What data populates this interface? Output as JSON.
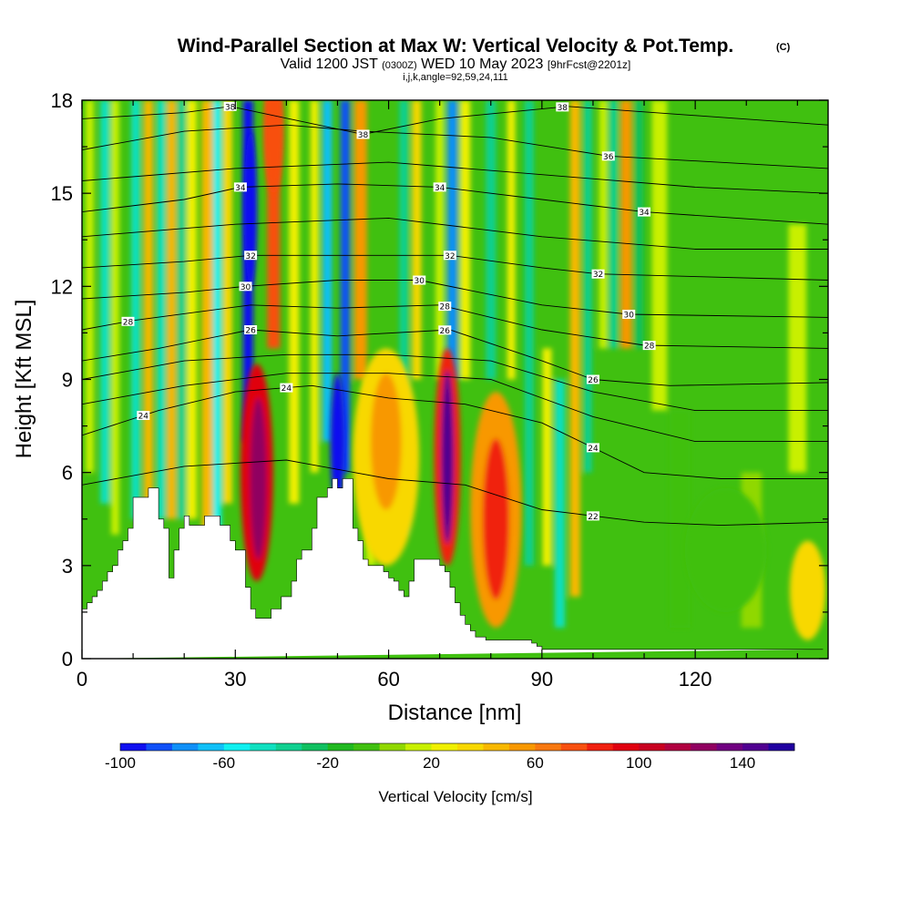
{
  "header": {
    "title": "Wind-Parallel Section at Max W: Vertical Velocity & Pot.Temp.",
    "copyright": "(C)",
    "valid_main": "Valid 1200 JST",
    "valid_z": "(0300Z)",
    "valid_date": "WED 10 May 2023",
    "forecast": "[9hrFcst@2201z]",
    "indices": "i,j,k,angle=92,59,24,111"
  },
  "chart_data": {
    "type": "heatmap",
    "title": "Wind-Parallel Section at Max W: Vertical Velocity & Pot.Temp.",
    "xlabel": "Distance [nm]",
    "ylabel": "Height [Kft MSL]",
    "xlim": [
      0,
      146
    ],
    "ylim": [
      0,
      18
    ],
    "x_ticks": [
      0,
      30,
      60,
      90,
      120
    ],
    "x_tick_labels": [
      "0",
      "30",
      "60",
      "90",
      "120"
    ],
    "y_ticks": [
      0,
      3,
      6,
      9,
      12,
      15,
      18
    ],
    "y_tick_labels": [
      "0",
      "3",
      "6",
      "9",
      "12",
      "15",
      "18"
    ],
    "grid": false,
    "background_field": -10,
    "colorbar": {
      "label": "Vertical Velocity [cm/s]",
      "min": -100,
      "max": 160,
      "step": 10,
      "tick_values": [
        -100,
        -60,
        -20,
        20,
        60,
        100,
        140
      ],
      "tick_labels": [
        "-100",
        "-60",
        "-20",
        "20",
        "60",
        "100",
        "140"
      ],
      "colors": [
        "#1010f0",
        "#1050f8",
        "#1090f8",
        "#10c0f8",
        "#10f0f0",
        "#10e0c0",
        "#10d090",
        "#10c060",
        "#20b820",
        "#40c010",
        "#90d800",
        "#c8f000",
        "#f0f000",
        "#f8d800",
        "#f8b800",
        "#f89800",
        "#f87810",
        "#f85010",
        "#f02010",
        "#e00010",
        "#c80020",
        "#b00040",
        "#900060",
        "#700080",
        "#500090",
        "#2000a0"
      ]
    },
    "velocity_columns": [
      {
        "x": 1.5,
        "w": 1.6,
        "ymin": 6,
        "ymax": 18,
        "value": 10
      },
      {
        "x": 4.5,
        "w": 1.8,
        "ymin": 5,
        "ymax": 18,
        "value": -45
      },
      {
        "x": 6.5,
        "w": 1.6,
        "ymin": 4,
        "ymax": 18,
        "value": 15
      },
      {
        "x": 10.5,
        "w": 1.8,
        "ymin": 4.5,
        "ymax": 18,
        "value": -50
      },
      {
        "x": 13,
        "w": 1.8,
        "ymin": 4.5,
        "ymax": 18,
        "value": 40
      },
      {
        "x": 15.5,
        "w": 1.6,
        "ymin": 4.5,
        "ymax": 18,
        "value": -45
      },
      {
        "x": 17.5,
        "w": 1.8,
        "ymin": 4.5,
        "ymax": 18,
        "value": 45
      },
      {
        "x": 19.5,
        "w": 1.6,
        "ymin": 4.5,
        "ymax": 18,
        "value": -40
      },
      {
        "x": 21.5,
        "w": 2.0,
        "ymin": 4.5,
        "ymax": 18,
        "value": 25
      },
      {
        "x": 24.5,
        "w": 2.2,
        "ymin": 4.0,
        "ymax": 18,
        "value": 40
      },
      {
        "x": 26.5,
        "w": 1.6,
        "ymin": 4.0,
        "ymax": 18,
        "value": -55
      },
      {
        "x": 28.5,
        "w": 1.8,
        "ymin": 5.0,
        "ymax": 18,
        "value": 30
      },
      {
        "x": 32.5,
        "w": 2.0,
        "ymin": 7.0,
        "ymax": 18,
        "value": -95
      },
      {
        "x": 37.5,
        "w": 2.5,
        "ymin": 10,
        "ymax": 18,
        "value": 70
      },
      {
        "x": 41.5,
        "w": 2.0,
        "ymin": 5,
        "ymax": 18,
        "value": 25
      },
      {
        "x": 45.5,
        "w": 1.6,
        "ymin": 6,
        "ymax": 18,
        "value": 25
      },
      {
        "x": 48,
        "w": 1.8,
        "ymin": 7,
        "ymax": 18,
        "value": -70
      },
      {
        "x": 51.5,
        "w": 1.8,
        "ymin": 6,
        "ymax": 18,
        "value": -85
      },
      {
        "x": 54.5,
        "w": 2.5,
        "ymin": 9,
        "ymax": 18,
        "value": 55
      },
      {
        "x": 56.5,
        "w": 2.0,
        "ymin": 3,
        "ymax": 9,
        "value": 10
      },
      {
        "x": 63,
        "w": 1.8,
        "ymin": 4,
        "ymax": 18,
        "value": -40
      },
      {
        "x": 65.5,
        "w": 1.8,
        "ymin": 9,
        "ymax": 18,
        "value": 30
      },
      {
        "x": 70,
        "w": 1.6,
        "ymin": 9,
        "ymax": 18,
        "value": 15
      },
      {
        "x": 72.5,
        "w": 2.0,
        "ymin": 9,
        "ymax": 18,
        "value": -80
      },
      {
        "x": 75,
        "w": 2.0,
        "ymin": 9,
        "ymax": 18,
        "value": 25
      },
      {
        "x": 80,
        "w": 2.0,
        "ymin": 9,
        "ymax": 18,
        "value": -35
      },
      {
        "x": 84,
        "w": 1.6,
        "ymin": 9,
        "ymax": 18,
        "value": 20
      },
      {
        "x": 87.5,
        "w": 1.8,
        "ymin": 3,
        "ymax": 18,
        "value": -35
      },
      {
        "x": 91,
        "w": 1.8,
        "ymin": 3,
        "ymax": 10,
        "value": 20
      },
      {
        "x": 93.5,
        "w": 2.0,
        "ymin": 1,
        "ymax": 9,
        "value": -45
      },
      {
        "x": 96.5,
        "w": 2.0,
        "ymin": 2,
        "ymax": 18,
        "value": 40
      },
      {
        "x": 99,
        "w": 1.6,
        "ymin": 6,
        "ymax": 18,
        "value": -40
      },
      {
        "x": 102,
        "w": 1.6,
        "ymin": 10,
        "ymax": 18,
        "value": 15
      },
      {
        "x": 104,
        "w": 1.6,
        "ymin": 10,
        "ymax": 18,
        "value": -35
      },
      {
        "x": 106.5,
        "w": 2.2,
        "ymin": 10,
        "ymax": 18,
        "value": 50
      },
      {
        "x": 109,
        "w": 1.6,
        "ymin": 10,
        "ymax": 18,
        "value": -30
      },
      {
        "x": 113,
        "w": 3.0,
        "ymin": 8,
        "ymax": 18,
        "value": 10
      },
      {
        "x": 117,
        "w": 4.0,
        "ymin": 1,
        "ymax": 8,
        "value": -5
      },
      {
        "x": 131,
        "w": 4.0,
        "ymin": 1,
        "ymax": 6,
        "value": 0
      },
      {
        "x": 140,
        "w": 3.5,
        "ymin": 6,
        "ymax": 14,
        "value": 10
      }
    ],
    "velocity_cells": [
      {
        "x": 34.2,
        "y": 6.0,
        "rx": 3.2,
        "ry": 3.5,
        "value": 90
      },
      {
        "x": 34.5,
        "y": 5.8,
        "rx": 1.6,
        "ry": 2.6,
        "value": 120
      },
      {
        "x": 33.0,
        "y": 14.5,
        "rx": 1.2,
        "ry": 2.5,
        "value": -100
      },
      {
        "x": 59.5,
        "y": 6.5,
        "rx": 6.5,
        "ry": 3.5,
        "value": 35
      },
      {
        "x": 59.5,
        "y": 7.0,
        "rx": 3.0,
        "ry": 2.2,
        "value": 50
      },
      {
        "x": 71.5,
        "y": 6.5,
        "rx": 2.6,
        "ry": 3.5,
        "value": 80
      },
      {
        "x": 71.5,
        "y": 6.5,
        "rx": 1.2,
        "ry": 2.8,
        "value": 140
      },
      {
        "x": 81.0,
        "y": 4.8,
        "rx": 5.0,
        "ry": 3.8,
        "value": 50
      },
      {
        "x": 81.0,
        "y": 4.5,
        "rx": 2.6,
        "ry": 2.6,
        "value": 80
      },
      {
        "x": 50.0,
        "y": 7.0,
        "rx": 1.4,
        "ry": 2.2,
        "value": -100
      },
      {
        "x": 142.0,
        "y": 2.2,
        "rx": 3.5,
        "ry": 1.6,
        "value": 35
      },
      {
        "x": 126.0,
        "y": 3.5,
        "rx": 8.0,
        "ry": 2.0,
        "value": -10
      },
      {
        "x": 37.5,
        "y": 17.0,
        "rx": 2.0,
        "ry": 2.0,
        "value": 70
      }
    ],
    "terrain": {
      "x": [
        0,
        1,
        2,
        3,
        4,
        5,
        6,
        7,
        8,
        9,
        10,
        11,
        12,
        13,
        14,
        15,
        16,
        17,
        18,
        19,
        20,
        21,
        22,
        23,
        24,
        25,
        26,
        27,
        28,
        29,
        30,
        31,
        32,
        33,
        34,
        35,
        36,
        37,
        38,
        39,
        40,
        41,
        42,
        43,
        44,
        45,
        46,
        47,
        48,
        49,
        50,
        51,
        52,
        53,
        54,
        55,
        56,
        57,
        58,
        59,
        60,
        61,
        62,
        63,
        64,
        65,
        66,
        67,
        68,
        69,
        70,
        71,
        72,
        73,
        74,
        75,
        76,
        77,
        78,
        79,
        80,
        81,
        82,
        83,
        84,
        85,
        86,
        87,
        88,
        89,
        90,
        91,
        92,
        93,
        94,
        95,
        96,
        97,
        98,
        99,
        100,
        101,
        102,
        103,
        104,
        105,
        106,
        107,
        108,
        109,
        110,
        111,
        112,
        113,
        114,
        115,
        116,
        117,
        118,
        119,
        120,
        121,
        122,
        123,
        124,
        125,
        126,
        127,
        128,
        129,
        130,
        131,
        132,
        133,
        134,
        135,
        136,
        137,
        138,
        139,
        140,
        141,
        142,
        143,
        144,
        145,
        146
      ],
      "h": [
        1.6,
        1.8,
        2.0,
        2.2,
        2.5,
        2.8,
        3.0,
        3.5,
        3.8,
        4.2,
        5.2,
        5.2,
        5.2,
        5.5,
        5.5,
        4.5,
        4.2,
        2.6,
        3.5,
        4.2,
        4.6,
        4.3,
        4.3,
        4.3,
        4.6,
        4.6,
        4.6,
        4.3,
        4.3,
        3.8,
        3.5,
        3.5,
        2.3,
        1.6,
        1.3,
        1.3,
        1.3,
        1.6,
        1.6,
        2.0,
        2.0,
        2.5,
        3.2,
        3.5,
        3.5,
        4.2,
        5.2,
        5.2,
        5.5,
        5.8,
        5.5,
        5.8,
        5.8,
        4.2,
        3.8,
        3.2,
        3.0,
        3.0,
        3.0,
        2.8,
        2.6,
        2.5,
        2.2,
        2.0,
        2.5,
        3.2,
        3.2,
        3.2,
        3.2,
        3.2,
        3.0,
        2.8,
        2.3,
        1.8,
        1.4,
        1.1,
        0.9,
        0.7,
        0.7,
        0.6,
        0.6,
        0.6,
        0.6,
        0.6,
        0.6,
        0.6,
        0.6,
        0.6,
        0.5,
        0.4,
        0.3,
        0.3,
        0.3,
        0.3,
        0.3,
        0.3,
        0.3,
        0.3,
        0.3,
        0.3,
        0.3,
        0.3,
        0.3,
        0.3,
        0.3,
        0.3,
        0.3,
        0.3,
        0.3,
        0.3,
        0.3,
        0.3,
        0.3,
        0.3,
        0.3,
        0.3,
        0.3,
        0.3,
        0.3,
        0.3,
        0.3,
        0.3,
        0.3,
        0.3,
        0.3,
        0.3,
        0.3,
        0.3,
        0.3,
        0.3,
        0.3,
        0.3,
        0.3,
        0.3,
        0.3,
        0.3,
        0.3,
        0.3,
        0.3,
        0.3,
        0.3,
        0.3,
        0.3,
        0.3,
        0.3
      ]
    },
    "isentropes": [
      {
        "label": "22",
        "pts": [
          [
            0,
            5.6
          ],
          [
            20,
            6.2
          ],
          [
            40,
            6.4
          ],
          [
            60,
            5.8
          ],
          [
            75,
            5.6
          ],
          [
            90,
            4.8
          ],
          [
            100,
            4.6
          ],
          [
            110,
            4.4
          ],
          [
            125,
            4.3
          ],
          [
            146,
            4.4
          ]
        ],
        "labels_at": [
          100
        ]
      },
      {
        "label": "24",
        "pts": [
          [
            0,
            7.2
          ],
          [
            15,
            8.0
          ],
          [
            30,
            8.6
          ],
          [
            45,
            8.8
          ],
          [
            60,
            8.4
          ],
          [
            75,
            8.2
          ],
          [
            90,
            7.6
          ],
          [
            100,
            6.8
          ],
          [
            110,
            6.0
          ],
          [
            125,
            5.8
          ],
          [
            146,
            5.8
          ]
        ],
        "labels_at": [
          12,
          40,
          100
        ]
      },
      {
        "label": "",
        "pts": [
          [
            0,
            8.2
          ],
          [
            20,
            8.8
          ],
          [
            40,
            9.2
          ],
          [
            60,
            9.2
          ],
          [
            80,
            9.0
          ],
          [
            100,
            7.8
          ],
          [
            120,
            7.0
          ],
          [
            146,
            7.0
          ]
        ],
        "labels_at": []
      },
      {
        "label": "",
        "pts": [
          [
            0,
            9.0
          ],
          [
            20,
            9.6
          ],
          [
            40,
            9.8
          ],
          [
            60,
            9.8
          ],
          [
            80,
            9.6
          ],
          [
            100,
            8.6
          ],
          [
            120,
            8.0
          ],
          [
            146,
            8.0
          ]
        ],
        "labels_at": []
      },
      {
        "label": "26",
        "pts": [
          [
            0,
            9.6
          ],
          [
            15,
            10.0
          ],
          [
            33,
            10.6
          ],
          [
            50,
            10.4
          ],
          [
            72,
            10.6
          ],
          [
            90,
            9.6
          ],
          [
            100,
            9.0
          ],
          [
            115,
            8.8
          ],
          [
            146,
            8.9
          ]
        ],
        "labels_at": [
          33,
          71,
          100
        ]
      },
      {
        "label": "28",
        "pts": [
          [
            0,
            10.6
          ],
          [
            10,
            10.9
          ],
          [
            33,
            11.4
          ],
          [
            50,
            11.3
          ],
          [
            70,
            11.4
          ],
          [
            90,
            10.6
          ],
          [
            110,
            10.1
          ],
          [
            146,
            10.0
          ]
        ],
        "labels_at": [
          9,
          71,
          111
        ]
      },
      {
        "label": "30",
        "pts": [
          [
            0,
            11.6
          ],
          [
            20,
            11.8
          ],
          [
            32,
            12.0
          ],
          [
            50,
            12.2
          ],
          [
            66,
            12.2
          ],
          [
            90,
            11.4
          ],
          [
            107,
            11.1
          ],
          [
            146,
            11.0
          ]
        ],
        "labels_at": [
          32,
          66,
          107
        ]
      },
      {
        "label": "32",
        "pts": [
          [
            0,
            12.6
          ],
          [
            20,
            12.8
          ],
          [
            33,
            13.0
          ],
          [
            50,
            13.0
          ],
          [
            72,
            13.0
          ],
          [
            90,
            12.6
          ],
          [
            101,
            12.4
          ],
          [
            146,
            12.2
          ]
        ],
        "labels_at": [
          33,
          72,
          101
        ]
      },
      {
        "label": "",
        "pts": [
          [
            0,
            13.6
          ],
          [
            30,
            14.0
          ],
          [
            60,
            14.2
          ],
          [
            90,
            13.6
          ],
          [
            120,
            13.2
          ],
          [
            146,
            13.2
          ]
        ],
        "labels_at": []
      },
      {
        "label": "34",
        "pts": [
          [
            0,
            14.4
          ],
          [
            20,
            14.8
          ],
          [
            31,
            15.2
          ],
          [
            50,
            15.3
          ],
          [
            70,
            15.2
          ],
          [
            90,
            14.8
          ],
          [
            110,
            14.4
          ],
          [
            146,
            14.0
          ]
        ],
        "labels_at": [
          31,
          70,
          110
        ]
      },
      {
        "label": "",
        "pts": [
          [
            0,
            15.4
          ],
          [
            30,
            15.8
          ],
          [
            60,
            16.0
          ],
          [
            90,
            15.6
          ],
          [
            120,
            15.2
          ],
          [
            146,
            15.0
          ]
        ],
        "labels_at": []
      },
      {
        "label": "36",
        "pts": [
          [
            0,
            16.4
          ],
          [
            20,
            17.0
          ],
          [
            40,
            17.2
          ],
          [
            55,
            17.0
          ],
          [
            80,
            16.8
          ],
          [
            103,
            16.2
          ],
          [
            146,
            15.8
          ]
        ],
        "labels_at": [
          103
        ]
      },
      {
        "label": "38",
        "pts": [
          [
            0,
            17.4
          ],
          [
            20,
            17.6
          ],
          [
            29,
            17.8
          ],
          [
            55,
            16.9
          ],
          [
            70,
            17.4
          ],
          [
            95,
            17.8
          ],
          [
            146,
            17.2
          ]
        ],
        "labels_at": [
          29,
          55,
          94
        ]
      }
    ]
  }
}
